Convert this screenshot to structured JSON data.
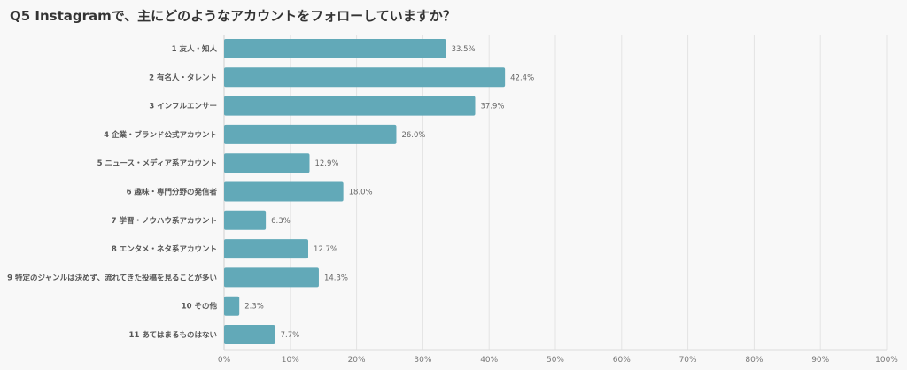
{
  "chart_data": {
    "type": "bar",
    "orientation": "horizontal",
    "title": "Q5 Instagramで、主にどのようなアカウントをフォローしていますか？",
    "categories": [
      "1 友人・知人",
      "2 有名人・タレント",
      "3 インフルエンサー",
      "4 企業・ブランド公式アカウント",
      "5 ニュース・メディア系アカウント",
      "6 趣味・専門分野の発信者",
      "7 学習・ノウハウ系アカウント",
      "8 エンタメ・ネタ系アカウント",
      "9 特定のジャンルは決めず、流れてきた投稿を見ることが多い",
      "10 その他",
      "11 あてはまるものはない"
    ],
    "values": [
      33.5,
      42.4,
      37.9,
      26.0,
      12.9,
      18.0,
      6.3,
      12.7,
      14.3,
      2.3,
      7.7
    ],
    "data_labels": [
      "33.5%",
      "42.4%",
      "37.9%",
      "26.0%",
      "12.9%",
      "18.0%",
      "6.3%",
      "12.7%",
      "14.3%",
      "2.3%",
      "7.7%"
    ],
    "xlim": [
      0,
      100
    ],
    "xticks": [
      "0%",
      "10%",
      "20%",
      "30%",
      "40%",
      "50%",
      "60%",
      "70%",
      "80%",
      "90%",
      "100%"
    ],
    "grid": true,
    "bar_color": "#62a9b8"
  }
}
